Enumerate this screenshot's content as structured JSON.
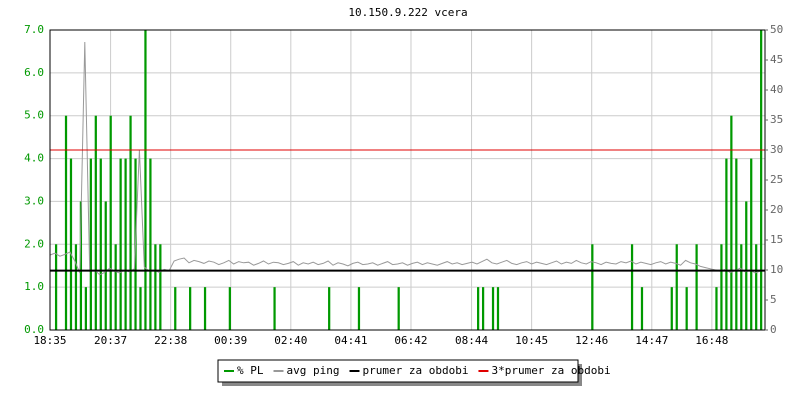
{
  "chart_data": {
    "type": "bar-line",
    "title": "10.150.9.222 vcera",
    "xlim": [
      0,
      1440
    ],
    "xticks": [
      {
        "value": 0,
        "label": "18:35"
      },
      {
        "value": 122,
        "label": "20:37"
      },
      {
        "value": 243,
        "label": "22:38"
      },
      {
        "value": 364,
        "label": "00:39"
      },
      {
        "value": 485,
        "label": "02:40"
      },
      {
        "value": 606,
        "label": "04:41"
      },
      {
        "value": 727,
        "label": "06:42"
      },
      {
        "value": 849,
        "label": "08:44"
      },
      {
        "value": 970,
        "label": "10:45"
      },
      {
        "value": 1091,
        "label": "12:46"
      },
      {
        "value": 1212,
        "label": "14:47"
      },
      {
        "value": 1333,
        "label": "16:48"
      }
    ],
    "ylim": [
      0,
      7
    ],
    "yticks": [
      {
        "value": 0,
        "label": "0.0"
      },
      {
        "value": 1,
        "label": "1.0"
      },
      {
        "value": 2,
        "label": "2.0"
      },
      {
        "value": 3,
        "label": "3.0"
      },
      {
        "value": 4,
        "label": "4.0"
      },
      {
        "value": 5,
        "label": "5.0"
      },
      {
        "value": 6,
        "label": "6.0"
      },
      {
        "value": 7,
        "label": "7.0"
      }
    ],
    "y2lim": [
      0,
      50
    ],
    "y2ticks": [
      0,
      5,
      10,
      15,
      20,
      25,
      30,
      35,
      40,
      45,
      50
    ],
    "grid": true,
    "x": [
      0,
      10,
      20,
      30,
      40,
      50,
      60,
      70,
      80,
      90,
      100,
      110,
      120,
      130,
      140,
      150,
      160,
      170,
      180,
      190,
      200,
      210,
      220,
      230,
      240,
      250,
      260,
      270,
      280,
      290,
      300,
      310,
      320,
      330,
      340,
      350,
      360,
      370,
      380,
      390,
      400,
      410,
      420,
      430,
      440,
      450,
      460,
      470,
      480,
      490,
      500,
      510,
      520,
      530,
      540,
      550,
      560,
      570,
      580,
      590,
      600,
      610,
      620,
      630,
      640,
      650,
      660,
      670,
      680,
      690,
      700,
      710,
      720,
      730,
      740,
      750,
      760,
      770,
      780,
      790,
      800,
      810,
      820,
      830,
      840,
      850,
      860,
      870,
      880,
      890,
      900,
      910,
      920,
      930,
      940,
      950,
      960,
      970,
      980,
      990,
      1000,
      1010,
      1020,
      1030,
      1040,
      1050,
      1060,
      1070,
      1080,
      1090,
      1100,
      1110,
      1120,
      1130,
      1140,
      1150,
      1160,
      1170,
      1180,
      1190,
      1200,
      1210,
      1220,
      1230,
      1240,
      1250,
      1260,
      1270,
      1280,
      1290,
      1300,
      1310,
      1320,
      1330,
      1340,
      1350,
      1360,
      1370,
      1380,
      1390,
      1400,
      1410,
      1420,
      1430
    ],
    "series": [
      {
        "name": "% PL",
        "color": "#009900",
        "kind": "bar",
        "values": [
          0,
          2,
          0,
          5,
          4,
          2,
          3,
          1,
          4,
          5,
          4,
          3,
          5,
          2,
          4,
          4,
          5,
          4,
          1,
          7,
          4,
          2,
          2,
          0,
          0,
          1,
          0,
          0,
          1,
          0,
          0,
          1,
          0,
          0,
          0,
          0,
          1,
          0,
          0,
          0,
          0,
          0,
          0,
          0,
          0,
          1,
          0,
          0,
          0,
          0,
          0,
          0,
          0,
          0,
          0,
          0,
          1,
          0,
          0,
          0,
          0,
          0,
          1,
          0,
          0,
          0,
          0,
          0,
          0,
          0,
          1,
          0,
          0,
          0,
          0,
          0,
          0,
          0,
          0,
          0,
          0,
          0,
          0,
          0,
          0,
          0,
          1,
          1,
          0,
          1,
          1,
          0,
          0,
          0,
          0,
          0,
          0,
          0,
          0,
          0,
          0,
          0,
          0,
          0,
          0,
          0,
          0,
          0,
          0,
          2,
          0,
          0,
          0,
          0,
          0,
          0,
          0,
          2,
          0,
          1,
          0,
          0,
          0,
          0,
          0,
          1,
          2,
          0,
          1,
          0,
          2,
          0,
          0,
          0,
          1,
          2,
          4,
          5,
          4,
          2,
          3,
          4,
          2,
          7
        ]
      },
      {
        "name": "avg ping",
        "color": "#999999",
        "kind": "line",
        "axis": "y2",
        "values": [
          12.5,
          12.8,
          12.3,
          12.6,
          13,
          11.5,
          9.5,
          48,
          9.8,
          10,
          9.2,
          9.6,
          10.3,
          9.8,
          9.5,
          10,
          9.7,
          10.2,
          30,
          10.5,
          9.8,
          10,
          9.6,
          10.1,
          9.9,
          11.5,
          11.8,
          12,
          11.2,
          11.6,
          11.4,
          11.1,
          11.5,
          11.3,
          10.9,
          11.2,
          11.6,
          11,
          11.4,
          11.2,
          11.3,
          10.8,
          11.1,
          11.5,
          11,
          11.3,
          11.2,
          10.9,
          11.1,
          11.4,
          10.8,
          11.2,
          11,
          11.3,
          10.9,
          11.1,
          11.5,
          10.8,
          11.2,
          11,
          10.7,
          11.1,
          11.3,
          10.9,
          11,
          11.2,
          10.8,
          11.1,
          11.4,
          10.9,
          11,
          11.2,
          10.8,
          11.1,
          11.3,
          10.9,
          11.2,
          11,
          10.8,
          11.1,
          11.4,
          11,
          11.2,
          10.9,
          11.1,
          11.3,
          11,
          11.4,
          11.8,
          11.2,
          11,
          11.3,
          11.6,
          11.1,
          10.9,
          11.2,
          11.4,
          11,
          11.3,
          11.1,
          10.9,
          11.2,
          11.5,
          11,
          11.3,
          11.1,
          11.6,
          11.2,
          11,
          11.4,
          11.2,
          10.9,
          11.3,
          11.1,
          11,
          11.4,
          11.2,
          11.5,
          11,
          11.3,
          11.1,
          10.9,
          11.2,
          11.4,
          11,
          11.3,
          11.1,
          10.8,
          11.6,
          11.2,
          11,
          10.6,
          10.4,
          10.2,
          10,
          9.8,
          10.1,
          9.6,
          9.9,
          10.3,
          9.7,
          10,
          9.5,
          9.8
        ]
      },
      {
        "name": "prumer za obdobi",
        "color": "#000000",
        "kind": "hline",
        "axis": "y2",
        "value": 9.9
      },
      {
        "name": "3*prumer za obdobi",
        "color": "#e00000",
        "kind": "hline",
        "axis": "y2",
        "value": 30
      }
    ]
  }
}
